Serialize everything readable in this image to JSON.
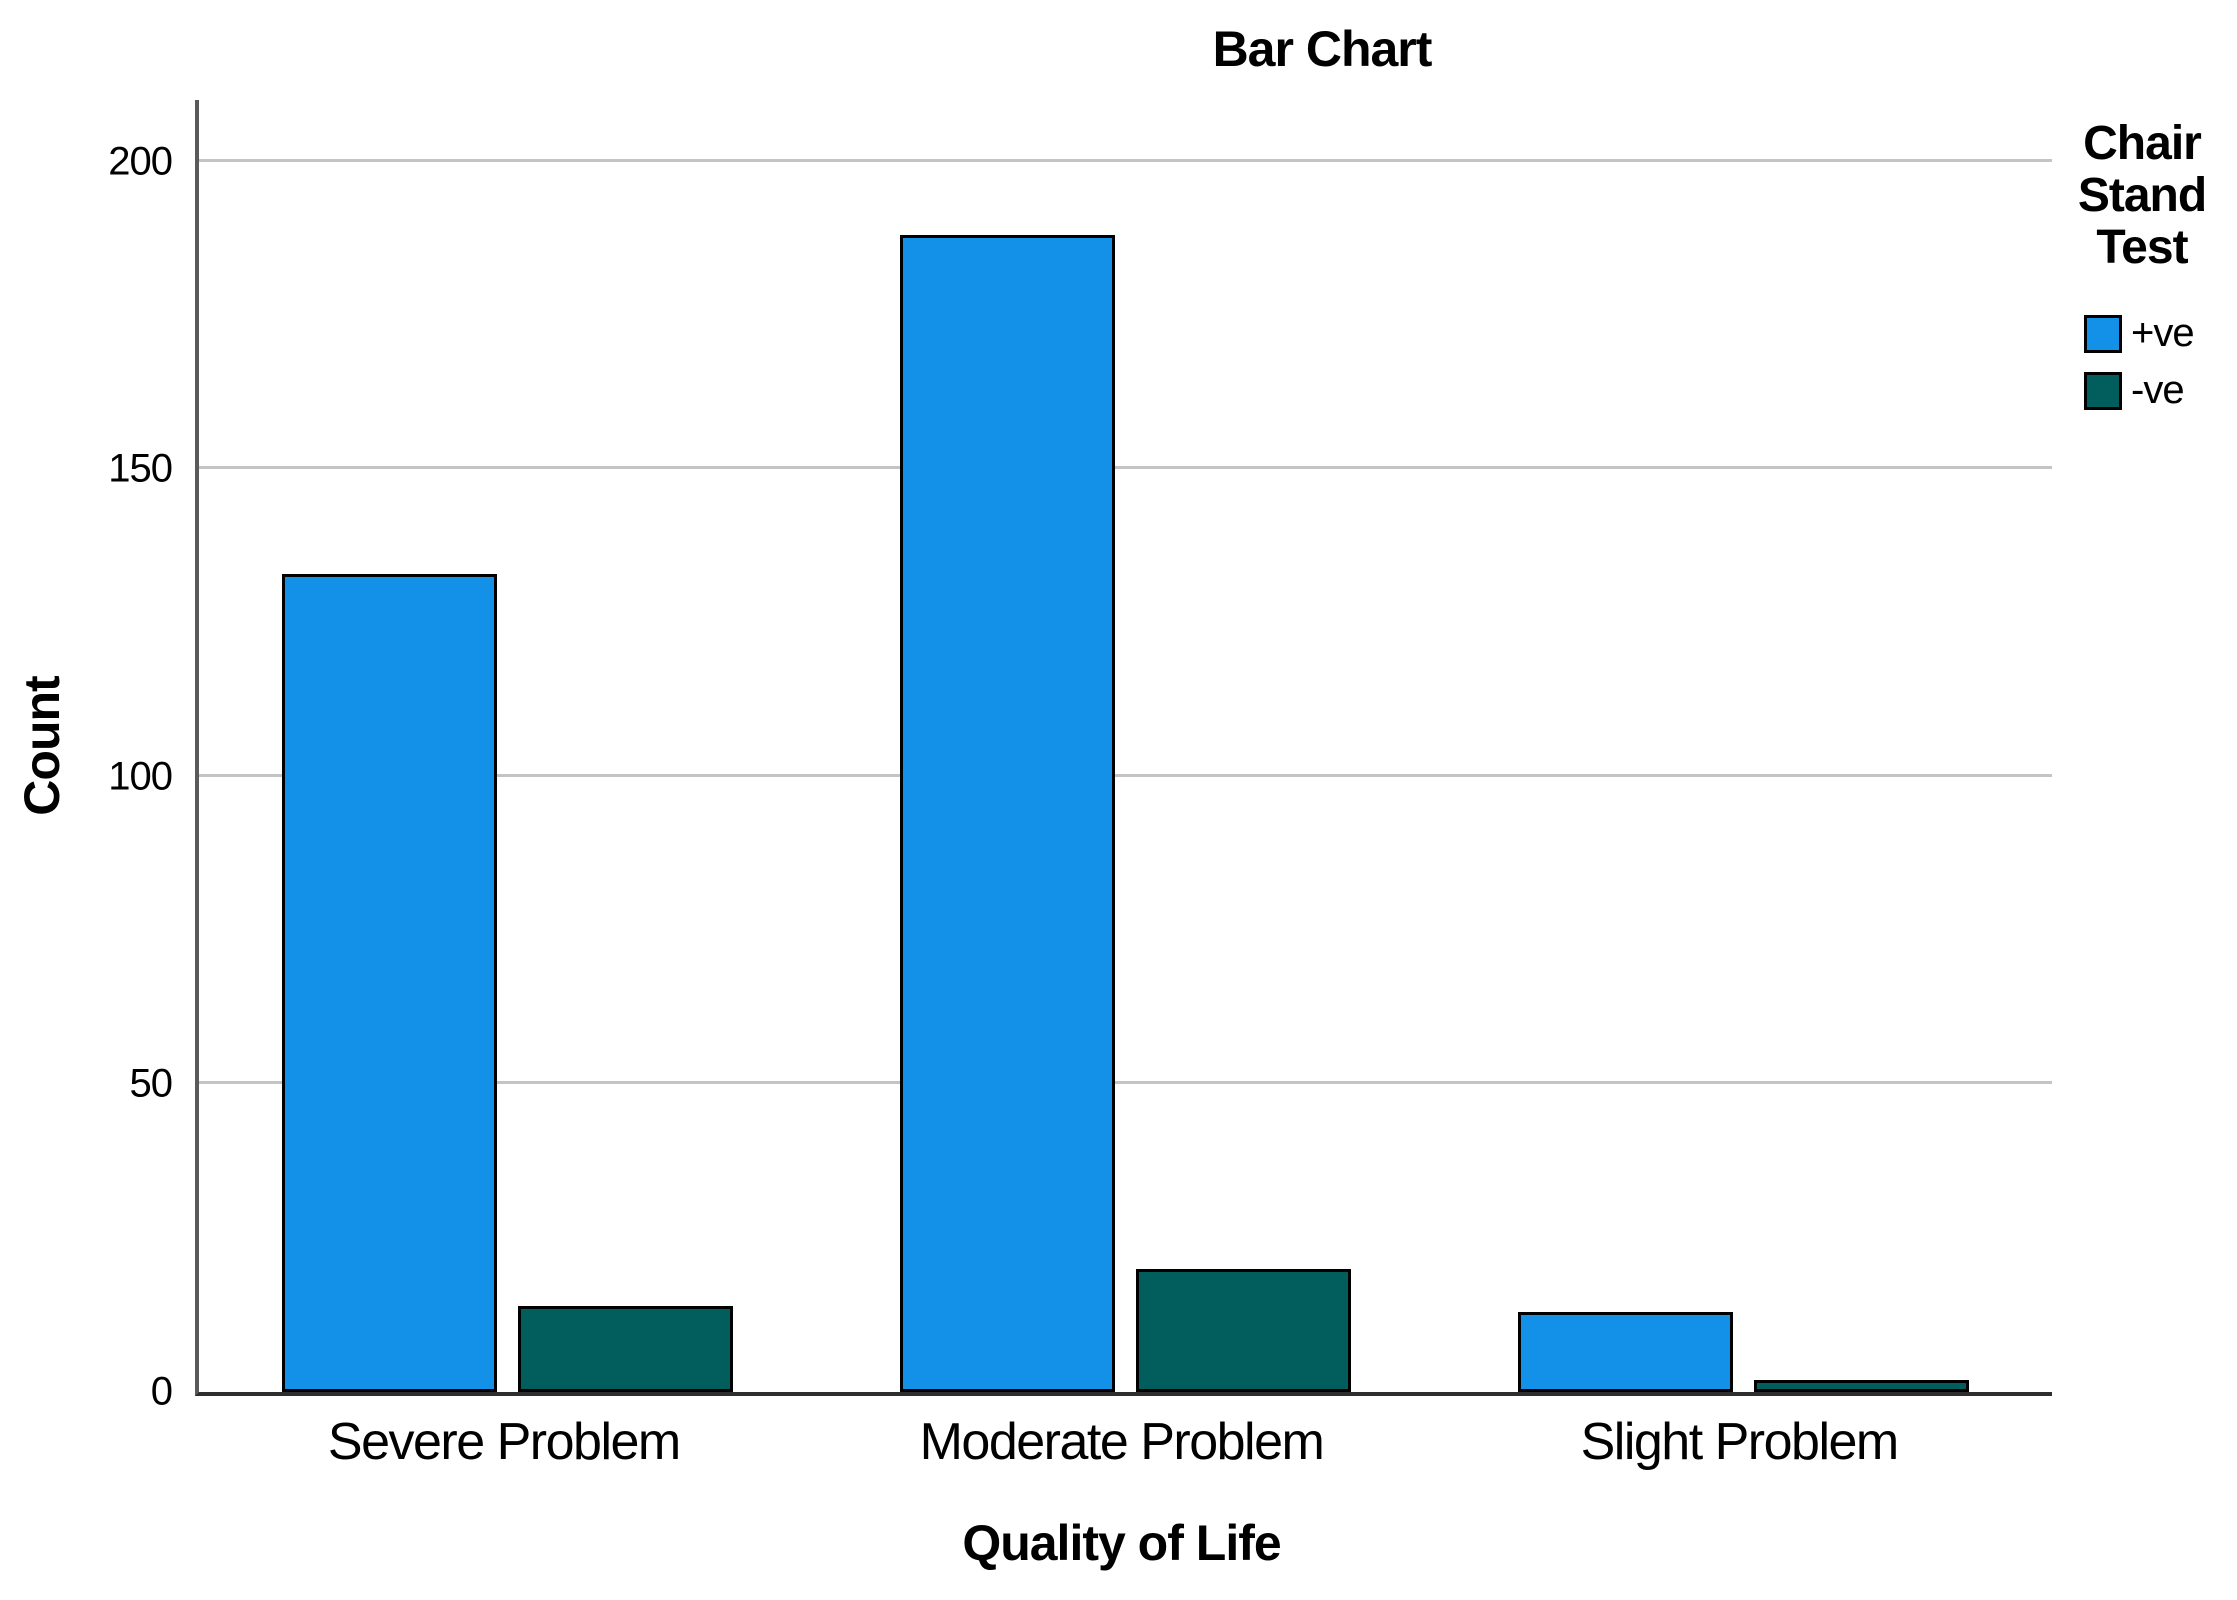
{
  "chart_data": {
    "type": "bar",
    "title": "Bar Chart",
    "xlabel": "Quality of Life",
    "ylabel": "Count",
    "categories": [
      "Severe Problem",
      "Moderate Problem",
      "Slight Problem"
    ],
    "series": [
      {
        "name": "+ve",
        "color": "#1390E8",
        "values": [
          133,
          188,
          13
        ]
      },
      {
        "name": "-ve",
        "color": "#015E5C",
        "values": [
          14,
          20,
          2
        ]
      }
    ],
    "ylim": [
      0,
      210
    ],
    "yticks": [
      0,
      50,
      100,
      150,
      200
    ],
    "grid": true,
    "legend_position": "right",
    "legend_title": "Chair Stand Test"
  },
  "colors": {
    "gridline": "#C4C4C4",
    "axis_left": "#5A5A5A",
    "axis_bottom": "#2E2E2E",
    "bar_border": "#000000",
    "text": "#000000",
    "background": "#FFFFFF"
  }
}
